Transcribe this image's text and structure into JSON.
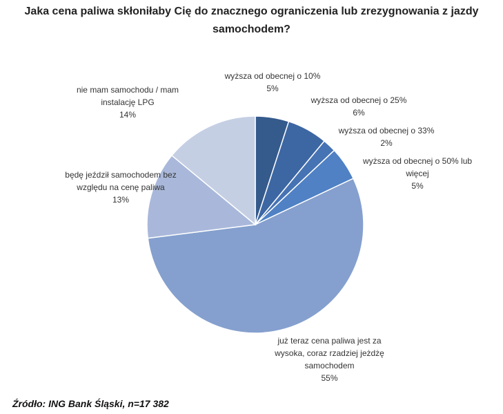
{
  "chart_data": {
    "type": "pie",
    "title": "Jaka cena paliwa skłoniłaby Cię do znacznego ograniczenia lub zrezygnowania z jazdy samochodem?",
    "categories": [
      "wyższa od obecnej o 10%",
      "wyższa od obecnej o 25%",
      "wyższa od obecnej o 33%",
      "wyższa od obecnej o 50% lub więcej",
      "już teraz cena paliwa jest za wysoka, coraz rzadziej jeżdżę samochodem",
      "będę jeździł samochodem bez względu na cenę paliwa",
      "nie mam samochodu / mam instalację LPG"
    ],
    "values": [
      5,
      6,
      2,
      5,
      55,
      13,
      14
    ],
    "value_labels": [
      "5%",
      "6%",
      "2%",
      "5%",
      "55%",
      "13%",
      "14%"
    ],
    "colors": [
      "#355a8c",
      "#3d67a3",
      "#4673b3",
      "#4f81c4",
      "#85a0ce",
      "#a9b8da",
      "#c5cfe4"
    ],
    "source": "Źródło: ING Bank Śląski, n=17 382"
  }
}
